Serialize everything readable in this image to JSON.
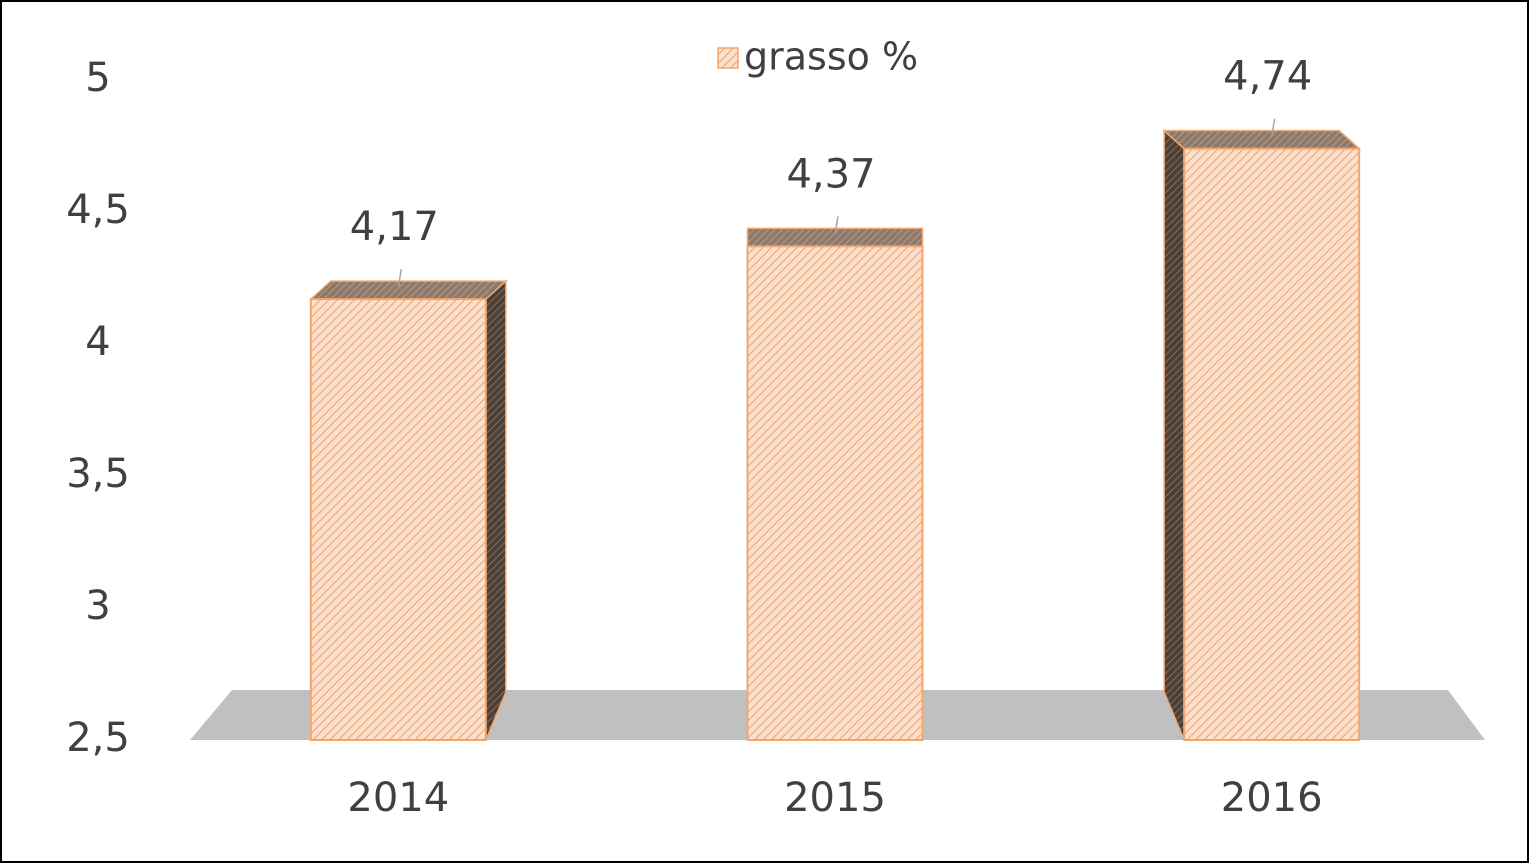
{
  "chart_data": {
    "type": "bar",
    "categories": [
      "2014",
      "2015",
      "2016"
    ],
    "series": [
      {
        "name": "grasso %",
        "color": "#f4b183",
        "values": [
          4.17,
          4.37,
          4.74
        ],
        "value_labels": [
          "4,17",
          "4,37",
          "4,74"
        ]
      }
    ],
    "ylim": [
      2.5,
      5
    ],
    "yticks": [
      {
        "value": 2.5,
        "label": "2,5"
      },
      3,
      {
        "value": 3.5,
        "label": "3,5"
      },
      4,
      {
        "value": 4.5,
        "label": "4,5"
      },
      5
    ],
    "legend": "top",
    "grid": false
  }
}
